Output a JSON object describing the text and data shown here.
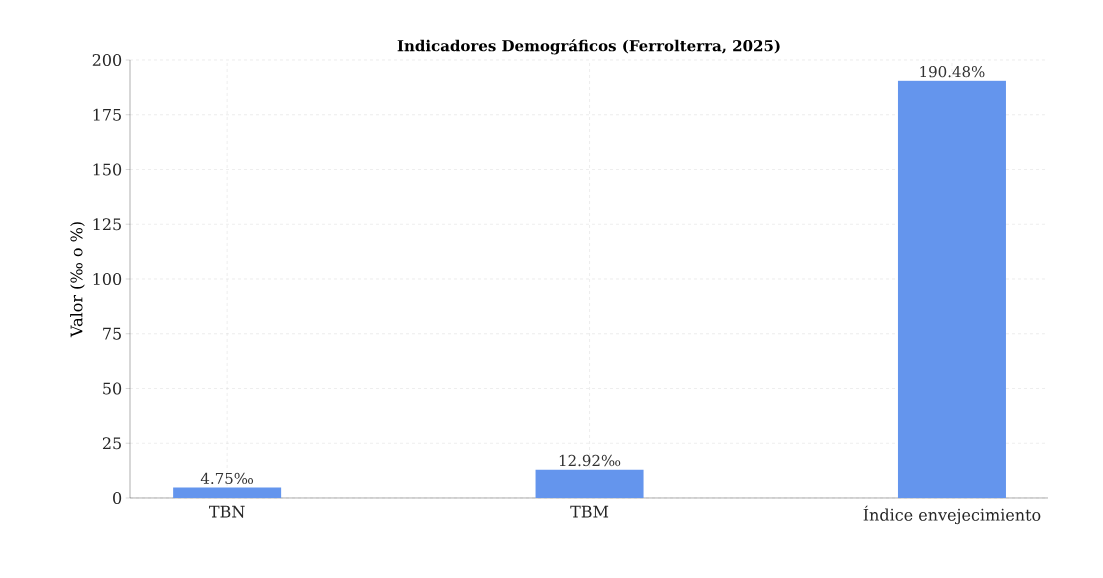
{
  "chart_data": {
    "type": "bar",
    "title": "Indicadores Demográficos (Ferrolterra, 2025)",
    "ylabel": "Valor (‰ o %)",
    "categories": [
      "TBN",
      "TBM",
      "Índice envejecimiento"
    ],
    "values": [
      4.75,
      12.92,
      190.48
    ],
    "value_labels": [
      "4.75‰",
      "12.92‰",
      "190.48%"
    ],
    "color": "#6495ed",
    "ylim": [
      0,
      200
    ],
    "yticks": [
      0,
      25,
      50,
      75,
      100,
      125,
      150,
      175,
      200
    ],
    "grid": true
  }
}
